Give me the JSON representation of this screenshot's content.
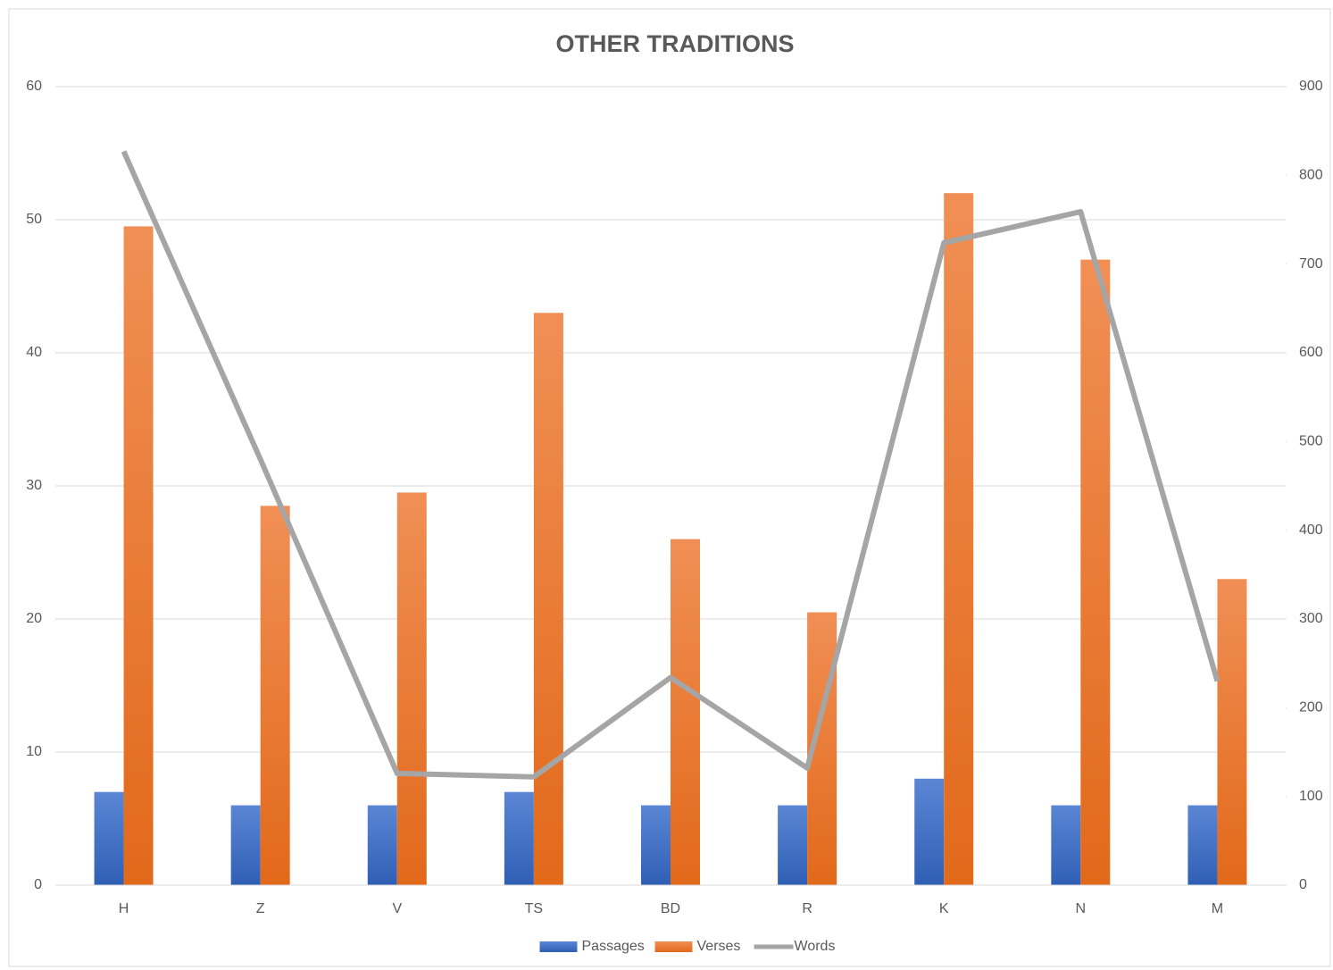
{
  "chart_data": {
    "type": "bar_line",
    "title": "OTHER TRADITIONS",
    "categories": [
      "H",
      "Z",
      "V",
      "TS",
      "BD",
      "R",
      "K",
      "N",
      "M"
    ],
    "series": [
      {
        "name": "Passages",
        "color": "#4472c4",
        "type": "bar",
        "values": [
          7,
          6,
          6,
          7,
          6,
          6,
          8,
          6,
          6
        ]
      },
      {
        "name": "Verses",
        "color": "#ed7d31",
        "type": "bar",
        "values": [
          49.5,
          28.5,
          29.5,
          43,
          26,
          20.5,
          52,
          47,
          23
        ]
      },
      {
        "name": "Words",
        "color": "#a5a5a5",
        "type": "line",
        "axis": "y2",
        "values": [
          827,
          480,
          126,
          122,
          234,
          132,
          724,
          759,
          230
        ]
      }
    ],
    "ylim": [
      0,
      60
    ],
    "yticks": [
      0,
      10,
      20,
      30,
      40,
      50,
      60
    ],
    "y2lim": [
      0,
      900
    ],
    "y2ticks": [
      0,
      100,
      200,
      300,
      400,
      500,
      600,
      700,
      800,
      900
    ],
    "grid": true,
    "legend": "bottom"
  }
}
